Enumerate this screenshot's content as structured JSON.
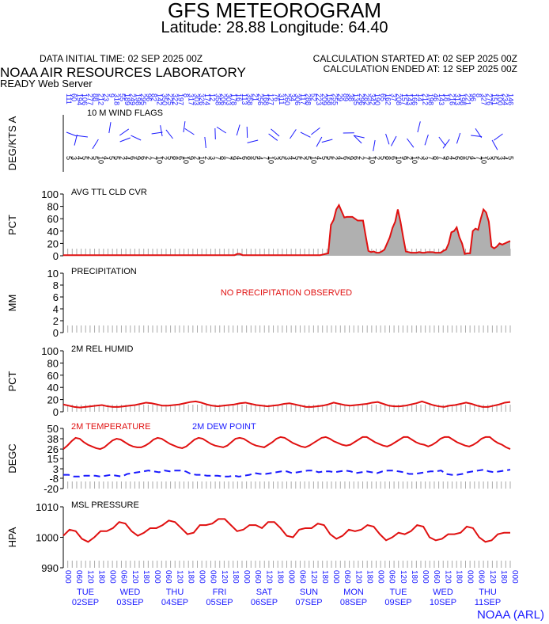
{
  "header": {
    "title": "GFS METEOROGRAM",
    "subtitle": "Latitude: 28.88 Longitude:  64.40",
    "init_time": "DATA INITIAL TIME: 02 SEP 2025 00Z",
    "calc_started": "CALCULATION STARTED AT: 02 SEP 2025 00Z",
    "calc_ended": "CALCULATION ENDED AT: 12 SEP 2025 00Z",
    "lab": "NOAA AIR RESOURCES LABORATORY",
    "server": "READY Web Server",
    "credit": "NOAA (ARL)"
  },
  "colors": {
    "red": "#e01010",
    "blue": "#1a1aff",
    "gray": "#aaaaaa",
    "fill": "#b0b0b0"
  },
  "chart_data": [
    {
      "type": "line",
      "panel": "wind",
      "title": "10 M  WIND FLAGS",
      "ylabel": "DEG/KTS  A",
      "icon": "wind-barbs"
    },
    {
      "type": "area",
      "panel": "cloud",
      "title": "AVG TTL CLD CVR",
      "ylabel": "PCT",
      "ylim": [
        0,
        100
      ],
      "yticks": [
        0,
        20,
        40,
        60,
        80,
        100
      ],
      "series": [
        {
          "values": [
            1,
            1,
            1,
            1,
            1,
            1,
            1,
            1,
            1,
            1,
            1,
            1,
            1,
            1,
            1,
            1,
            1,
            1,
            1,
            1,
            1,
            1,
            1,
            1,
            1,
            1,
            1,
            1,
            1,
            1,
            1,
            1,
            1,
            1,
            1,
            1,
            1,
            1,
            1,
            1,
            1,
            1,
            1,
            1,
            1,
            1,
            1,
            1,
            1,
            1,
            1,
            1,
            1,
            1,
            1,
            1,
            1,
            1,
            1,
            1,
            1,
            1,
            1,
            1,
            1,
            3,
            3,
            1,
            1,
            1,
            1,
            1,
            1,
            1,
            1,
            1,
            1,
            1,
            1,
            1,
            1,
            1,
            1,
            1,
            1,
            1,
            1,
            1,
            1,
            1,
            1,
            1,
            1,
            1,
            1,
            1,
            1,
            2,
            3,
            4,
            50,
            58,
            75,
            82,
            72,
            62,
            63,
            63,
            63,
            60,
            57,
            57,
            57,
            32,
            8,
            6,
            7,
            5,
            5,
            7,
            10,
            20,
            30,
            45,
            55,
            75,
            55,
            30,
            7,
            6,
            5,
            5,
            5,
            6,
            5,
            5,
            6,
            6,
            6,
            5,
            5,
            5,
            8,
            10,
            20,
            38,
            40,
            46,
            30,
            20,
            3,
            4,
            4,
            40,
            44,
            42,
            60,
            75,
            70,
            55,
            15,
            12,
            15,
            20,
            18,
            20,
            22,
            24
          ]
        }
      ]
    },
    {
      "type": "area",
      "panel": "precip",
      "title": "PRECIPITATION",
      "ylabel": "MM",
      "ylim": [
        0,
        10
      ],
      "yticks": [
        0,
        2,
        4,
        6,
        8,
        10
      ],
      "annotation": "NO PRECIPITATION OBSERVED"
    },
    {
      "type": "line",
      "panel": "rh",
      "title": "2M REL HUMID",
      "ylabel": "PCT",
      "ylim": [
        0,
        100
      ],
      "yticks": [
        0,
        20,
        40,
        60,
        80,
        100
      ],
      "series": [
        {
          "values": [
            12,
            10,
            8,
            7,
            8,
            9,
            10,
            11,
            9,
            8,
            8,
            9,
            10,
            11,
            13,
            15,
            14,
            12,
            10,
            10,
            11,
            12,
            14,
            16,
            17,
            15,
            12,
            10,
            9,
            10,
            11,
            12,
            14,
            15,
            13,
            11,
            10,
            9,
            10,
            11,
            13,
            14,
            12,
            10,
            8,
            8,
            9,
            10,
            12,
            15,
            13,
            11,
            10,
            11,
            12,
            13,
            15,
            16,
            13,
            10,
            9,
            9,
            10,
            12,
            14,
            17,
            14,
            11,
            9,
            8,
            10,
            11,
            13,
            15,
            13,
            10,
            8,
            8,
            10,
            12,
            15,
            16
          ]
        }
      ]
    },
    {
      "type": "line",
      "panel": "temp",
      "title": "2M TEMPERATURE",
      "title2": "2M   DEW POINT",
      "ylabel": "DEGC",
      "ylim": [
        -20,
        50
      ],
      "yticks": [
        -20,
        -8,
        3,
        15,
        26,
        38,
        50
      ],
      "series": [
        {
          "name": "2M TEMPERATURE",
          "values": [
            26,
            30,
            35,
            39,
            38,
            34,
            31,
            29,
            27,
            26,
            28,
            32,
            36,
            38,
            37,
            34,
            31,
            29,
            28,
            28,
            30,
            33,
            37,
            39,
            38,
            35,
            32,
            30,
            28,
            27,
            29,
            33,
            37,
            39,
            38,
            35,
            32,
            30,
            29,
            28,
            30,
            34,
            38,
            39,
            38,
            35,
            32,
            30,
            29,
            28,
            31,
            34,
            38,
            40,
            39,
            36,
            33,
            31,
            29,
            28,
            30,
            33,
            36,
            39,
            40,
            38,
            35,
            33,
            31,
            30,
            31,
            34,
            37,
            40,
            40,
            37,
            34,
            32,
            30,
            29,
            31,
            34,
            37,
            40,
            40,
            37,
            34,
            32,
            31,
            29,
            31,
            34,
            38,
            40,
            40,
            37,
            34,
            32,
            30,
            29,
            31,
            34,
            38,
            40,
            40,
            36,
            33,
            31,
            28,
            26
          ]
        },
        {
          "name": "2M   DEW POINT",
          "values": [
            -4,
            -4,
            -6,
            -6,
            -5,
            -5,
            -5,
            -6,
            -5,
            -4,
            -5,
            -6,
            -3,
            -2,
            -1,
            0,
            1,
            0,
            -1,
            1,
            0,
            1,
            1,
            0,
            -3,
            -4,
            -4,
            -5,
            -5,
            -5,
            -6,
            -6,
            -5,
            -6,
            -5,
            -4,
            -2,
            -3,
            -3,
            -2,
            -1,
            0,
            0,
            -2,
            -1,
            0,
            1,
            1,
            -1,
            0,
            0,
            -1,
            0,
            1,
            0,
            -2,
            -1,
            0,
            -1,
            -2,
            0,
            1,
            1,
            0,
            -1,
            -3,
            -3,
            -2,
            -1,
            0,
            0,
            1,
            -3,
            -4,
            -4,
            -3,
            -1,
            0,
            1,
            2,
            0,
            -1,
            0,
            1,
            2
          ]
        }
      ]
    },
    {
      "type": "line",
      "panel": "pressure",
      "title": "MSL PRESSURE",
      "ylabel": "HPA",
      "ylim": [
        990,
        1010
      ],
      "yticks": [
        990,
        1000,
        1010
      ],
      "series": [
        {
          "values": [
            1000.5,
            1002.5,
            1002,
            999.5,
            998.5,
            1000,
            1002,
            1002,
            1003,
            1005,
            1004.5,
            1002,
            1000.5,
            1001.5,
            1003,
            1003,
            1004,
            1005.5,
            1005,
            1003,
            1001,
            1001.5,
            1004,
            1004,
            1004.5,
            1006,
            1006,
            1004,
            1002,
            1002.5,
            1004,
            1004,
            1003,
            1005,
            1005,
            1003,
            1000.5,
            1000,
            1002.5,
            1003,
            1003,
            1004.5,
            1004,
            1001,
            999.5,
            1000.5,
            1002.5,
            1002,
            1002.5,
            1004,
            1003.5,
            1001,
            999,
            1000,
            1001.5,
            1001,
            1002,
            1004,
            1003.5,
            1000,
            999,
            999.5,
            1001,
            1001,
            1001.5,
            1003.5,
            1003,
            1000,
            998.5,
            999,
            1001,
            1001.5,
            1001.5
          ]
        }
      ]
    }
  ],
  "x_axis": {
    "hour_labels": [
      "00",
      "06",
      "12",
      "18"
    ],
    "days": [
      {
        "dow": "TUE",
        "date": "02SEP"
      },
      {
        "dow": "WED",
        "date": "03SEP"
      },
      {
        "dow": "THU",
        "date": "04SEP"
      },
      {
        "dow": "FRI",
        "date": "05SEP"
      },
      {
        "dow": "SAT",
        "date": "06SEP"
      },
      {
        "dow": "SUN",
        "date": "07SEP"
      },
      {
        "dow": "MON",
        "date": "08SEP"
      },
      {
        "dow": "TUE",
        "date": "09SEP"
      },
      {
        "dow": "WED",
        "date": "10SEP"
      },
      {
        "dow": "THU",
        "date": "11SEP"
      }
    ]
  }
}
